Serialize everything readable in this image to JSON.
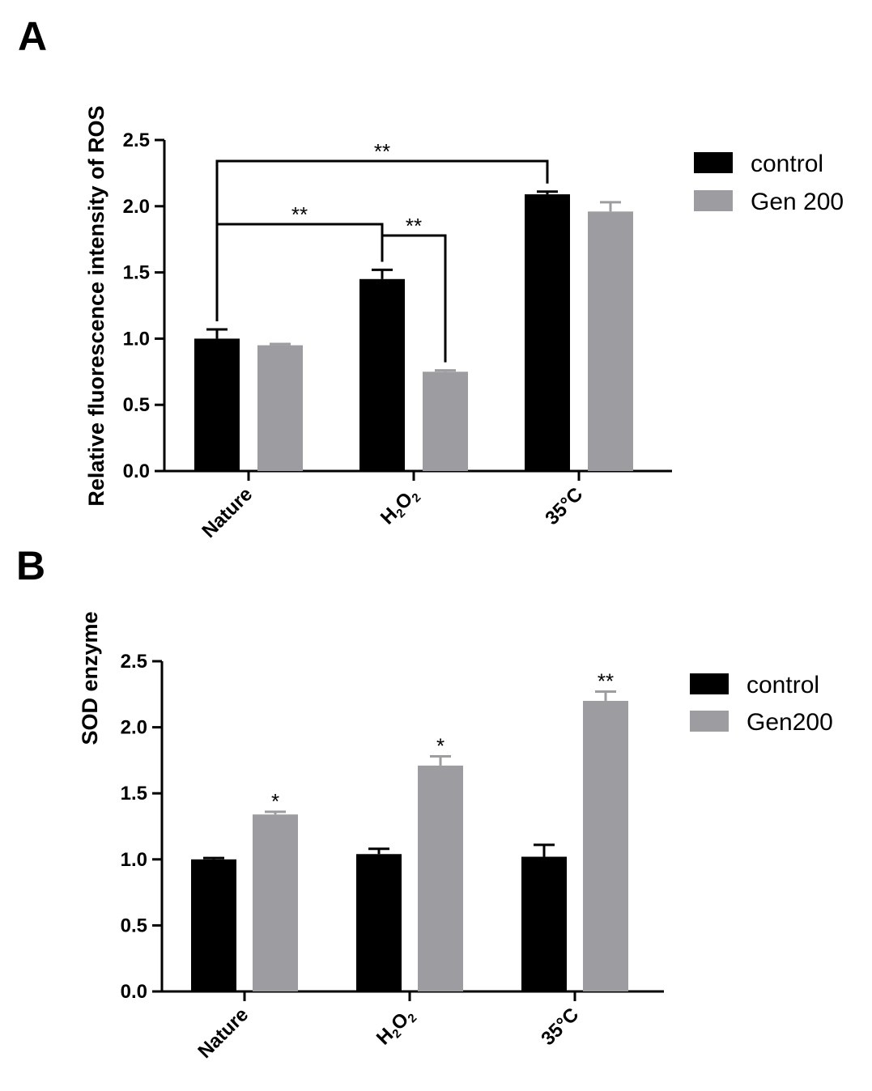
{
  "colors": {
    "control": "#000000",
    "gen": "#9d9ca1",
    "axis": "#000000"
  },
  "chart_data": [
    {
      "panel": "A",
      "type": "bar",
      "ylabel": "Relative fluorescence intensity of ROS",
      "ylim": [
        0,
        2.5
      ],
      "yticks": [
        "0.0",
        "0.5",
        "1.0",
        "1.5",
        "2.0",
        "2.5"
      ],
      "categories": [
        "Nature",
        "H2O2",
        "35°C"
      ],
      "series": [
        {
          "name": "control",
          "values": [
            1.0,
            1.45,
            2.09
          ],
          "errors": [
            0.07,
            0.07,
            0.02
          ]
        },
        {
          "name": "Gen 200",
          "values": [
            0.95,
            0.75,
            1.96
          ],
          "errors": [
            0.01,
            0.01,
            0.07
          ]
        }
      ],
      "brackets": [
        {
          "from": "control:Nature",
          "to": "control:35°C",
          "label": "**"
        },
        {
          "from": "control:Nature",
          "to": "control:H2O2",
          "label": "**"
        },
        {
          "from": "control:H2O2",
          "to": "Gen 200:H2O2",
          "label": "**"
        }
      ],
      "legend": [
        "control",
        "Gen 200"
      ],
      "legend_position": "top-right"
    },
    {
      "panel": "B",
      "type": "bar",
      "ylabel": "SOD enzyme",
      "ylim": [
        0,
        2.5
      ],
      "yticks": [
        "0.0",
        "0.5",
        "1.0",
        "1.5",
        "2.0",
        "2.5"
      ],
      "categories": [
        "Nature",
        "H2O2",
        "35°C"
      ],
      "series": [
        {
          "name": "control",
          "values": [
            1.0,
            1.04,
            1.02
          ],
          "errors": [
            0.01,
            0.04,
            0.09
          ]
        },
        {
          "name": "Gen200",
          "values": [
            1.34,
            1.71,
            2.2
          ],
          "errors": [
            0.02,
            0.07,
            0.07
          ]
        }
      ],
      "significance": [
        "*",
        "*",
        "**"
      ],
      "legend": [
        "control",
        "Gen200"
      ],
      "legend_position": "top-right"
    }
  ]
}
